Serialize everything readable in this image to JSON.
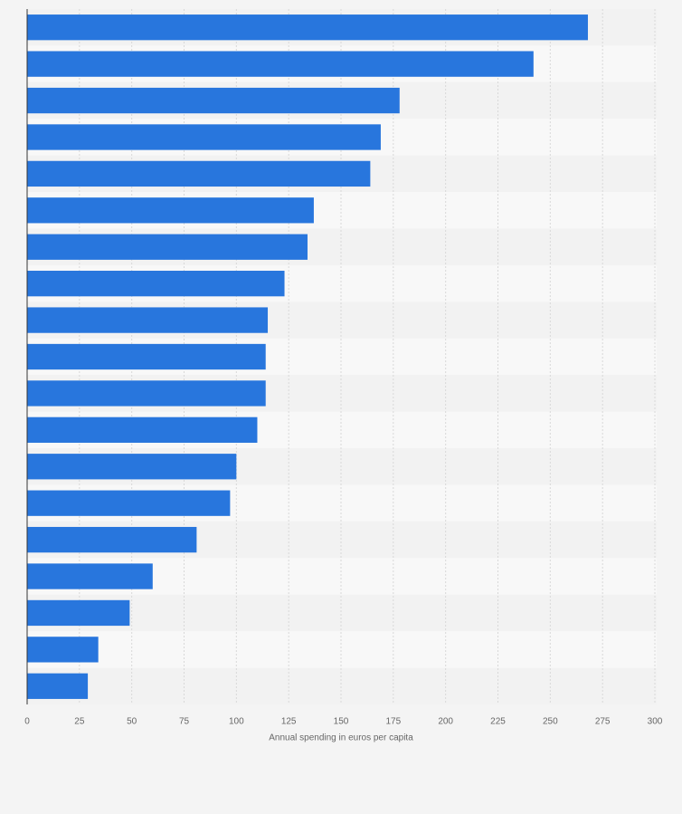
{
  "chart_data": {
    "type": "hbar",
    "x_label": "Annual spending in euros per capita",
    "categories": [
      null,
      null,
      null,
      null,
      null,
      null,
      null,
      null,
      null,
      null,
      null,
      null,
      null,
      null,
      null,
      null,
      null,
      null,
      null
    ],
    "values": [
      268,
      242,
      178,
      169,
      164,
      137,
      134,
      123,
      115,
      114,
      114,
      110,
      100,
      97,
      81,
      60,
      49,
      34,
      29
    ],
    "color": "#2876dd",
    "xlim": [
      0,
      300
    ],
    "xticks": [
      0,
      25,
      50,
      75,
      100,
      125,
      150,
      175,
      200,
      225,
      250,
      275,
      300
    ],
    "grid": true
  }
}
